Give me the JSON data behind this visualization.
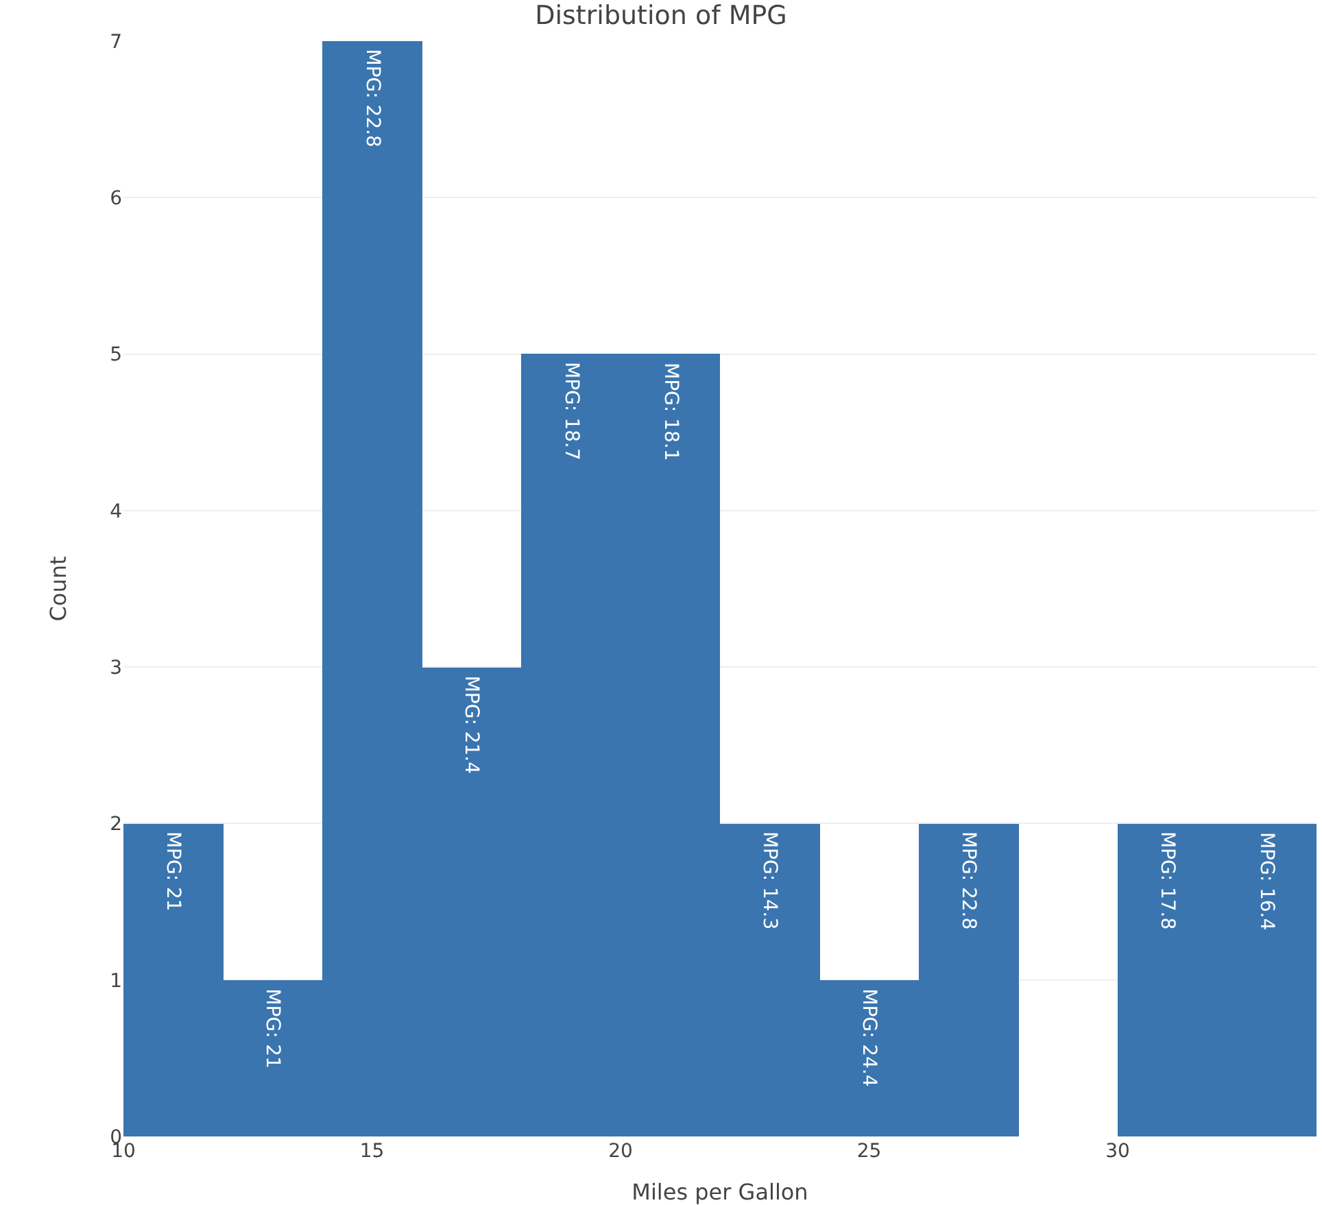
{
  "chart_data": {
    "type": "histogram",
    "title": "Distribution of MPG",
    "xlabel": "Miles per Gallon",
    "ylabel": "Count",
    "bins": [
      10,
      12,
      14,
      16,
      18,
      20,
      22,
      24,
      26,
      28,
      30,
      32,
      34
    ],
    "values": [
      2,
      1,
      7,
      3,
      5,
      5,
      2,
      1,
      2,
      0,
      2,
      2
    ],
    "annotations": [
      {
        "text": "MPG: 21",
        "x": 11,
        "y": 2
      },
      {
        "text": "MPG: 21",
        "x": 13,
        "y": 1
      },
      {
        "text": "MPG: 22.8",
        "x": 15,
        "y": 7
      },
      {
        "text": "MPG: 21.4",
        "x": 17,
        "y": 3
      },
      {
        "text": "MPG: 18.7",
        "x": 19,
        "y": 5
      },
      {
        "text": "MPG: 18.1",
        "x": 21,
        "y": 5
      },
      {
        "text": "MPG: 14.3",
        "x": 23,
        "y": 2
      },
      {
        "text": "MPG: 24.4",
        "x": 25,
        "y": 1
      },
      {
        "text": "MPG: 22.8",
        "x": 27,
        "y": 2
      },
      {
        "text": "MPG: 17.8",
        "x": 31,
        "y": 2
      },
      {
        "text": "MPG: 16.4",
        "x": 33,
        "y": 2
      }
    ],
    "color": "#3a75af",
    "xlim": [
      10,
      34
    ],
    "xticks": [
      10,
      15,
      20,
      25,
      30
    ],
    "ylim": [
      0,
      7
    ],
    "yticks": [
      0,
      1,
      2,
      3,
      4,
      5,
      6,
      7
    ],
    "grid": "y",
    "legend": false
  }
}
